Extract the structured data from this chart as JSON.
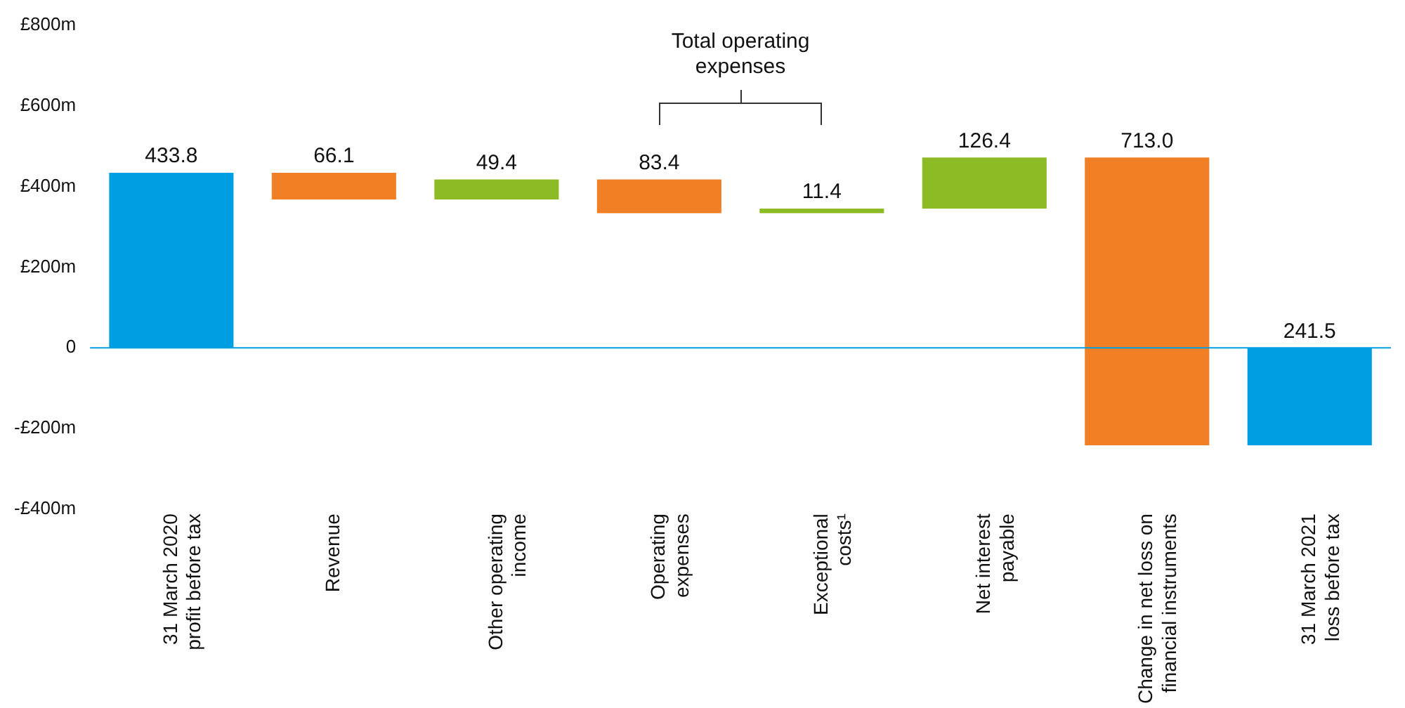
{
  "chart_data": {
    "type": "bar",
    "categories": [
      "31 March 2020\nprofit before tax",
      "Revenue",
      "Other operating\nincome",
      "Operating\nexpenses",
      "Exceptional\ncosts¹",
      "Net interest\npayable",
      "Change in net loss on\nfinancial instruments",
      "31 March 2021\nloss before tax"
    ],
    "values": [
      433.8,
      -66.1,
      49.4,
      -83.4,
      11.4,
      126.4,
      -713.0,
      -241.5
    ],
    "base": [
      0,
      433.8,
      367.7,
      417.1,
      333.7,
      345.1,
      471.5,
      0
    ],
    "colors": [
      "#009fe3",
      "#f07f26",
      "#8dbb25",
      "#f07f26",
      "#8dbb25",
      "#8dbb25",
      "#f07f26",
      "#009fe3"
    ],
    "value_labels": [
      "433.8",
      "66.1",
      "49.4",
      "83.4",
      "11.4",
      "126.4",
      "713.0",
      "241.5"
    ],
    "ylim": [
      -400,
      800
    ],
    "yticks": [
      {
        "value": 800,
        "label": "£800m"
      },
      {
        "value": 600,
        "label": "£600m"
      },
      {
        "value": 400,
        "label": "£400m"
      },
      {
        "value": 200,
        "label": "£200m"
      },
      0,
      {
        "value": -200,
        "label": "-£200m"
      },
      {
        "value": -400,
        "label": "-£400m"
      }
    ],
    "ref_lines": [
      {
        "axis": "y",
        "value": 0,
        "color": "#009fe3"
      }
    ],
    "annotations": [
      "Total operating\nexpenses"
    ],
    "grid": false,
    "legend": false
  }
}
